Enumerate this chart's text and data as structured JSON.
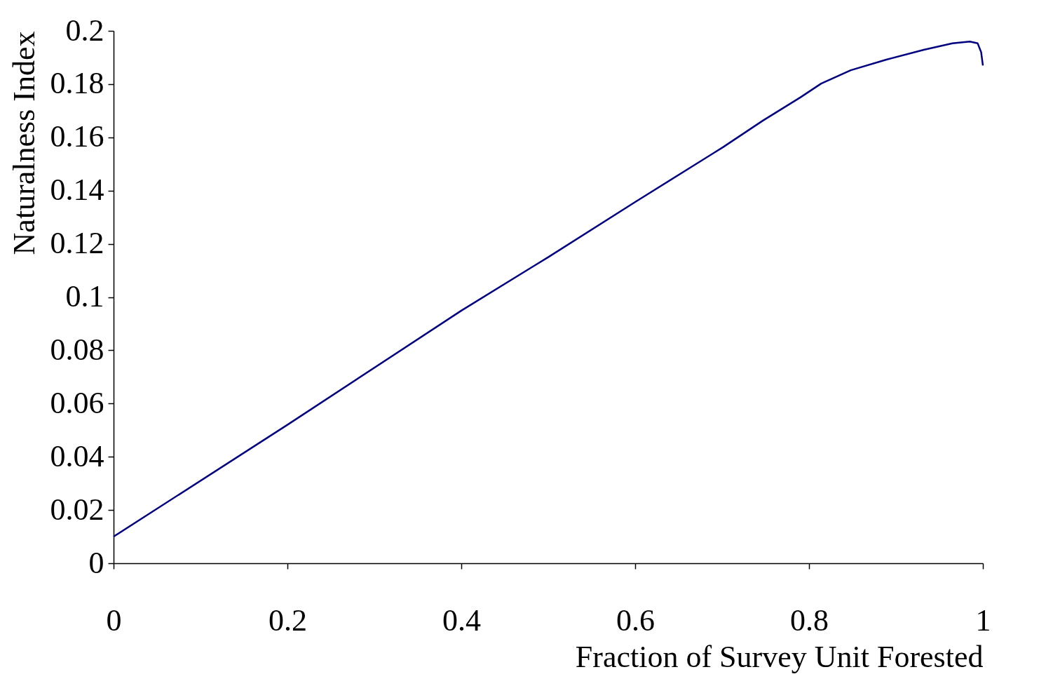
{
  "chart_data": {
    "type": "line",
    "xlabel": "Fraction of Survey Unit Forested",
    "ylabel": "Naturalness Index",
    "x": [
      0,
      0.2,
      0.4,
      0.5,
      0.6,
      0.701,
      0.747,
      0.79,
      0.814,
      0.848,
      0.889,
      0.932,
      0.965,
      0.985,
      0.994,
      0.998,
      1.0
    ],
    "series": [
      {
        "color": "#000080",
        "values": [
          0.01,
          0.052,
          0.0949,
          0.115,
          0.1357,
          0.1563,
          0.1663,
          0.175,
          0.1802,
          0.1852,
          0.1892,
          0.1929,
          0.1953,
          0.196,
          0.1953,
          0.192,
          0.187
        ]
      }
    ],
    "xlim": [
      0,
      1
    ],
    "xticks": [
      0,
      0.2,
      0.4,
      0.6,
      0.8,
      1
    ],
    "ylim": [
      0,
      0.2
    ],
    "yticks": [
      0,
      0.02,
      0.04,
      0.06,
      0.08,
      0.1,
      0.12,
      0.14,
      0.16,
      0.18,
      0.2
    ],
    "grid": false,
    "marker": "none",
    "line_style": "solid"
  }
}
